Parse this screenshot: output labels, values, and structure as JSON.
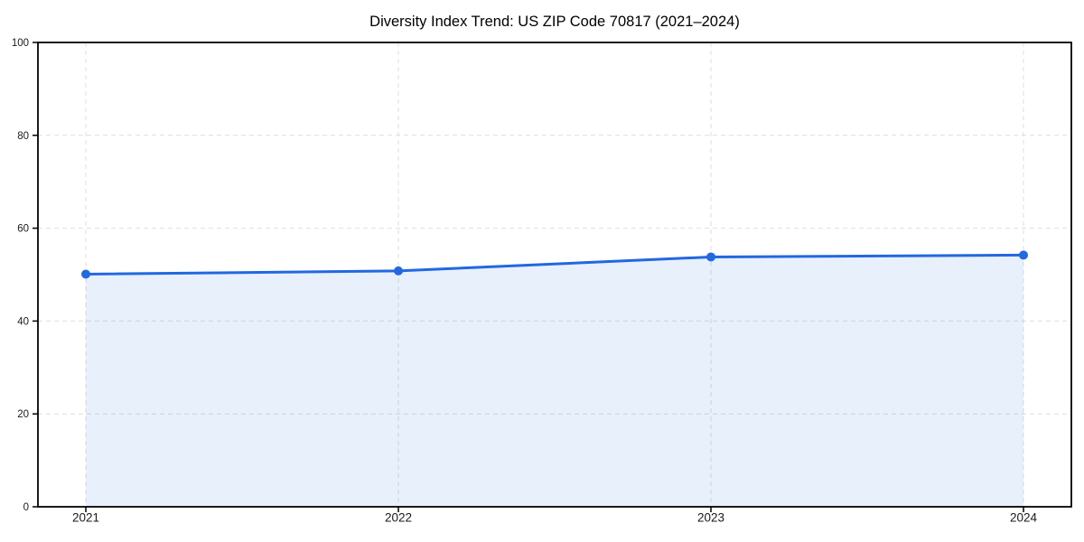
{
  "page": {
    "background": "#ffffff"
  },
  "chart_data": {
    "type": "area",
    "title": "Diversity Index Trend: US ZIP Code 70817 (2021–2024)",
    "categories": [
      "2021",
      "2022",
      "2023",
      "2024"
    ],
    "series": [
      {
        "name": "Diversity Index",
        "values": [
          50.1,
          50.8,
          53.8,
          54.2
        ]
      }
    ],
    "xlabel": "",
    "ylabel": "",
    "ylim": [
      0,
      100
    ],
    "yticks": [
      0,
      20,
      40,
      60,
      80,
      100
    ],
    "grid": true,
    "grid_style": "dashed",
    "legend": "none",
    "marker": "circle",
    "colors": {
      "line": "#2268e0",
      "marker": "#2268e0",
      "fill": "#2268e0",
      "fill_opacity": 0.1,
      "grid": "#dedede",
      "axis": "#000000",
      "tick_text": "#1a1a1a",
      "title_text": "#000000",
      "background": "#ffffff"
    }
  }
}
